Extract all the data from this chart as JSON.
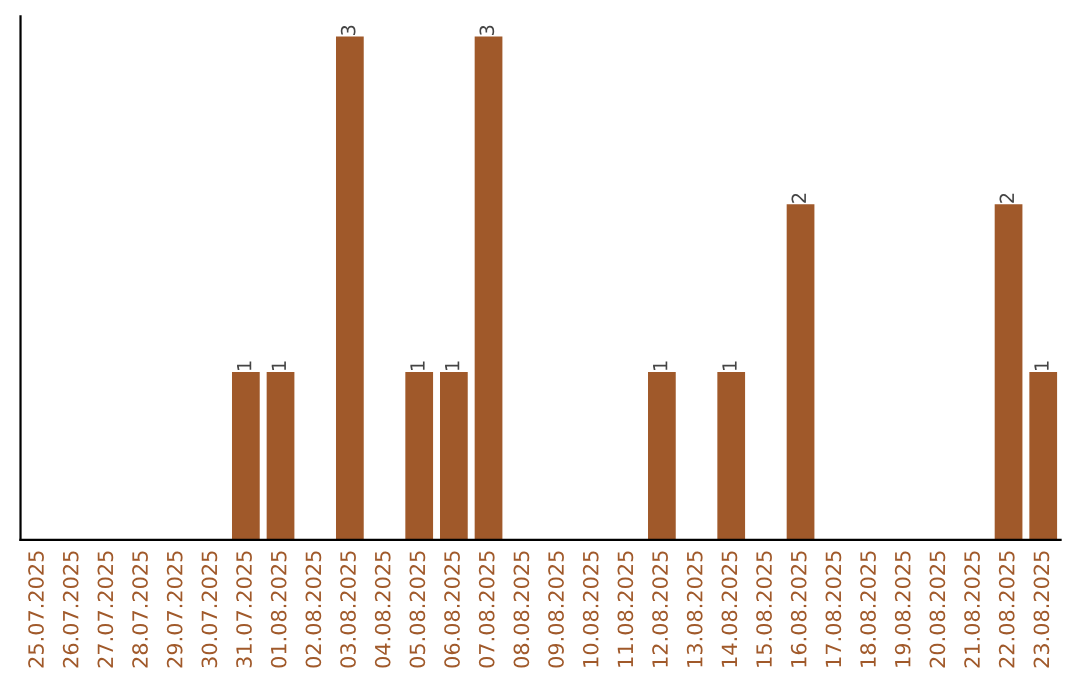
{
  "chart_data": {
    "type": "bar",
    "categories": [
      "25.07.2025",
      "26.07.2025",
      "27.07.2025",
      "28.07.2025",
      "29.07.2025",
      "30.07.2025",
      "31.07.2025",
      "01.08.2025",
      "02.08.2025",
      "03.08.2025",
      "04.08.2025",
      "05.08.2025",
      "06.08.2025",
      "07.08.2025",
      "08.08.2025",
      "09.08.2025",
      "10.08.2025",
      "11.08.2025",
      "12.08.2025",
      "13.08.2025",
      "14.08.2025",
      "15.08.2025",
      "16.08.2025",
      "17.08.2025",
      "18.08.2025",
      "19.08.2025",
      "20.08.2025",
      "21.08.2025",
      "22.08.2025",
      "23.08.2025"
    ],
    "values": [
      0,
      0,
      0,
      0,
      0,
      0,
      1,
      1,
      0,
      3,
      0,
      1,
      1,
      3,
      0,
      0,
      0,
      0,
      1,
      0,
      1,
      0,
      2,
      0,
      0,
      0,
      0,
      0,
      2,
      1
    ],
    "value_labels": [
      null,
      null,
      null,
      null,
      null,
      null,
      "1",
      "1",
      null,
      "3",
      null,
      "1",
      "1",
      "3",
      null,
      null,
      null,
      null,
      "1",
      null,
      "1",
      null,
      "2",
      null,
      null,
      null,
      null,
      null,
      "2",
      "1"
    ],
    "color": "#a0592a",
    "relative": false,
    "grid": false,
    "legend": false
  }
}
